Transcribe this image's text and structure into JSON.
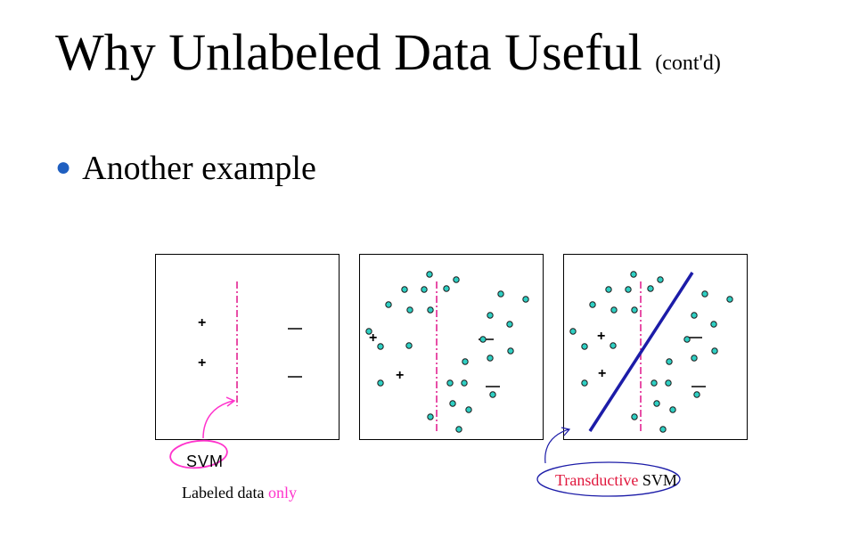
{
  "title": {
    "main": "Why Unlabeled Data Useful",
    "suffix": "(cont'd)"
  },
  "bullet": {
    "text": "Another example"
  },
  "colors": {
    "point_fill": "#2fcfc3",
    "svm_boundary": "#e0158a",
    "transductive_boundary": "#1c1ca8",
    "accent_pink": "#ff33cc",
    "accent_red": "#e0163c",
    "bullet_blue": "#1f5fc0"
  },
  "panels": [
    {
      "id": "labeled-only",
      "positives": [
        [
          1,
          1
        ],
        [
          1,
          2
        ]
      ],
      "negatives": [
        [
          2,
          1
        ],
        [
          2,
          2
        ]
      ],
      "unlabeled": [],
      "transductive": false
    },
    {
      "id": "with-unlabeled",
      "positives": [
        [
          1,
          1
        ],
        [
          1,
          2
        ]
      ],
      "negatives": [
        [
          2,
          1
        ],
        [
          2,
          2
        ]
      ],
      "unlabeled": true,
      "transductive": false
    },
    {
      "id": "transductive",
      "positives": [
        [
          1,
          1
        ],
        [
          1,
          2
        ]
      ],
      "negatives": [
        [
          2,
          1
        ],
        [
          2,
          2
        ]
      ],
      "unlabeled": true,
      "transductive": true
    }
  ],
  "captions": {
    "svm": "SVM",
    "labeled_prefix": "Labeled data ",
    "labeled_highlight": "only",
    "transductive_highlight": "Transductive",
    "transductive_suffix": " SVM"
  }
}
